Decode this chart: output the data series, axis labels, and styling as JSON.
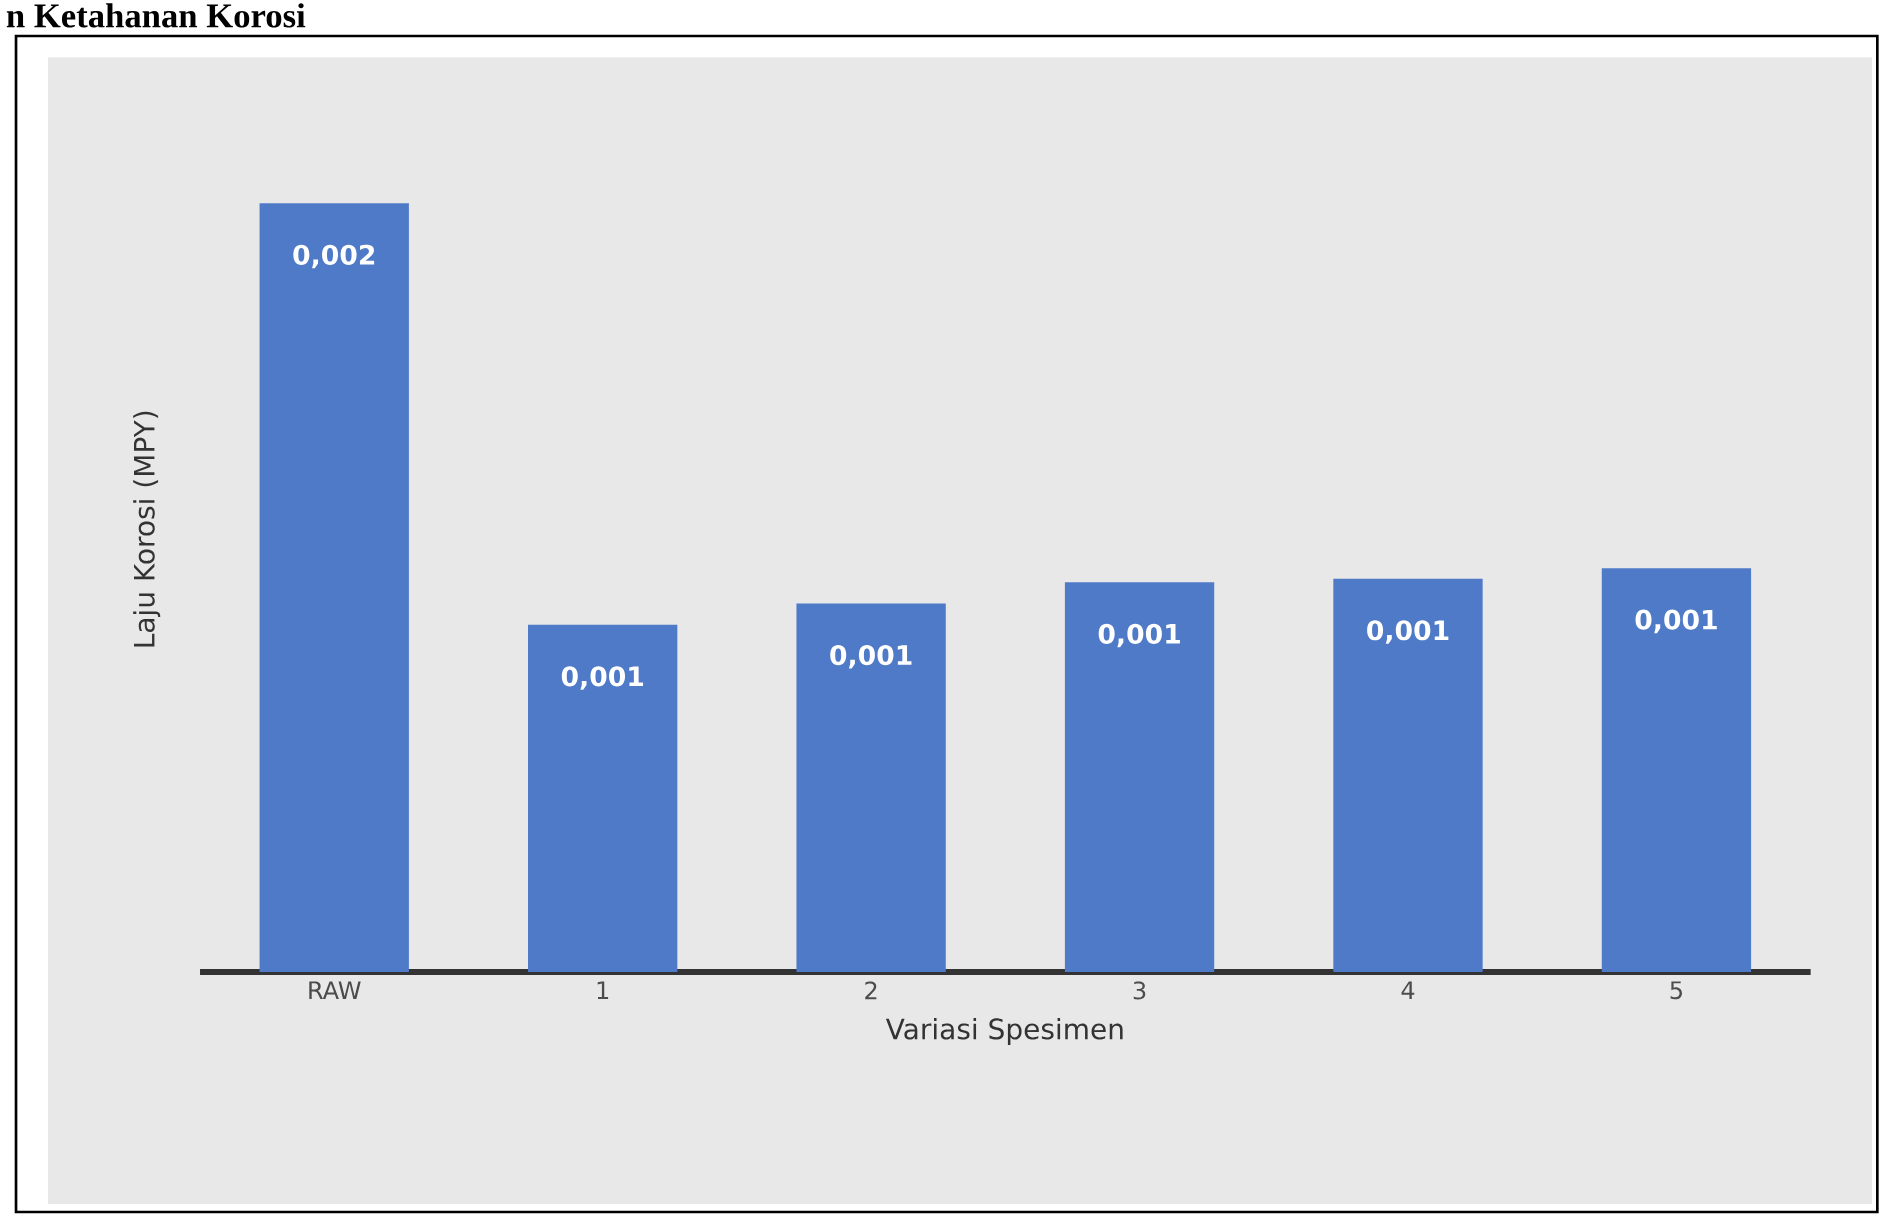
{
  "chart_data": {
    "type": "bar",
    "title": "n Ketahanan Korosi",
    "xlabel": "Variasi Spesimen",
    "ylabel": "Laju Korosi (MPY)",
    "categories": [
      "RAW",
      "1",
      "2",
      "3",
      "4",
      "5"
    ],
    "values": [
      0.00217,
      0.00098,
      0.00104,
      0.0011,
      0.00111,
      0.00114
    ],
    "value_labels": [
      "0,002",
      "0,001",
      "0,001",
      "0,001",
      "0,001",
      "0,001"
    ],
    "color": "#4f7ac8"
  }
}
